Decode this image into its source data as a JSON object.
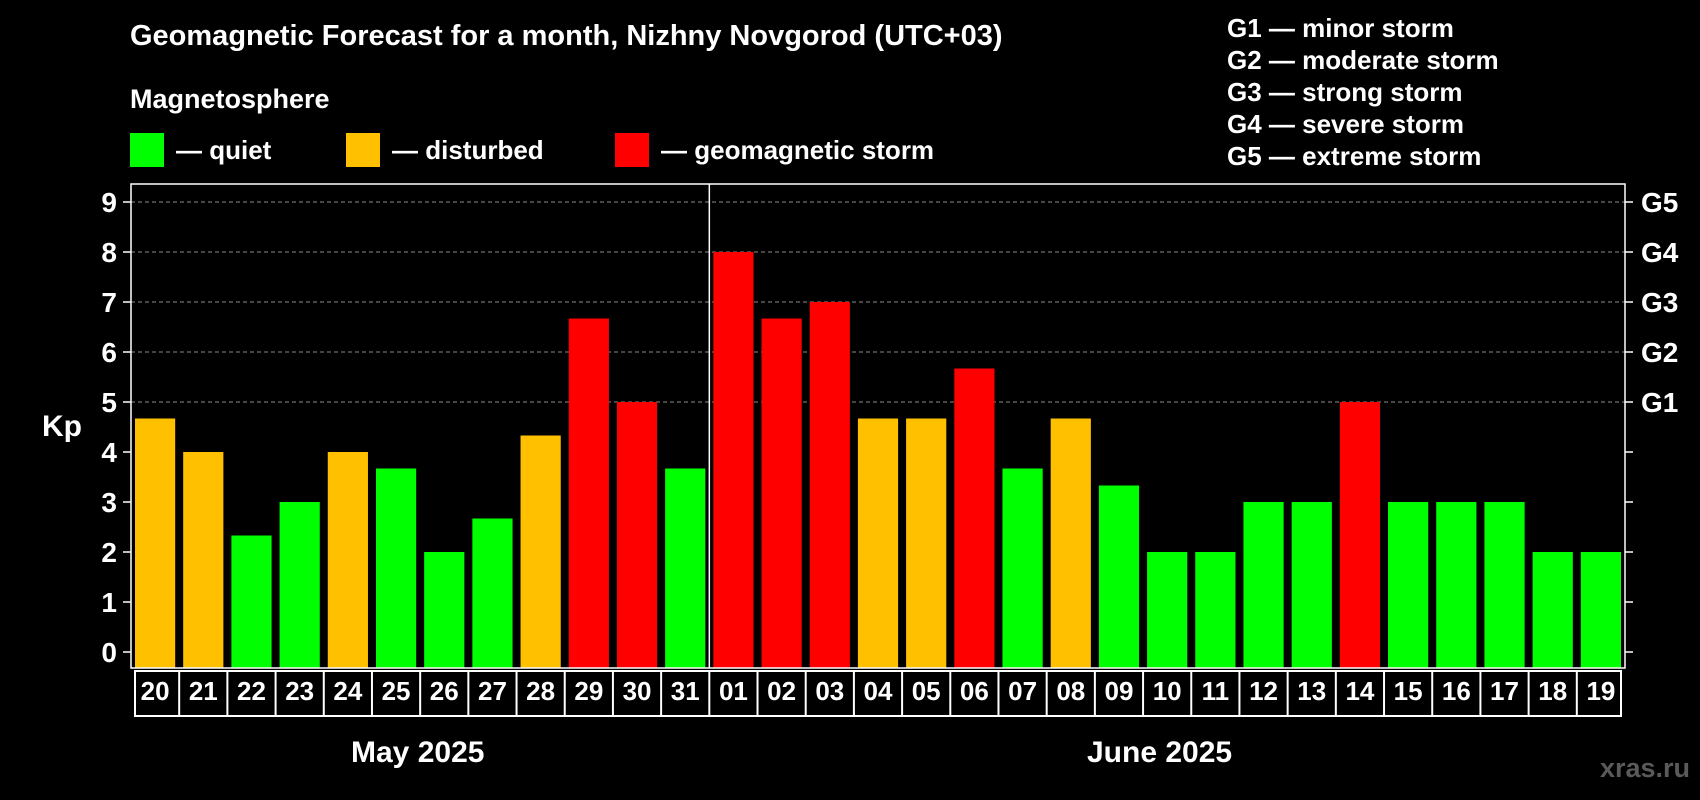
{
  "title": "Geomagnetic Forecast for a month, Nizhny Novgorod (UTC+03)",
  "magnetosphere_label": "Magnetosphere",
  "legend": [
    {
      "label": "— quiet",
      "color": "#00ff00"
    },
    {
      "label": "— disturbed",
      "color": "#ffc000"
    },
    {
      "label": "— geomagnetic storm",
      "color": "#ff0000"
    }
  ],
  "g_scale": [
    "G1 — minor storm",
    "G2 — moderate storm",
    "G3 — strong storm",
    "G4 — severe storm",
    "G5 — extreme storm"
  ],
  "months": [
    "May 2025",
    "June 2025"
  ],
  "watermark": "xras.ru",
  "colors": {
    "quiet": "#00ff00",
    "disturbed": "#ffc000",
    "storm": "#ff0000",
    "grid": "#8a8a8a"
  },
  "chart_data": {
    "type": "bar",
    "ylabel": "Kp",
    "ylim": [
      0,
      9
    ],
    "yticks": [
      "0",
      "1",
      "2",
      "3",
      "4",
      "5",
      "6",
      "7",
      "8",
      "9"
    ],
    "right_ticks": [
      {
        "value": 5,
        "label": "G1"
      },
      {
        "value": 6,
        "label": "G2"
      },
      {
        "value": 7,
        "label": "G3"
      },
      {
        "value": 8,
        "label": "G4"
      },
      {
        "value": 9,
        "label": "G5"
      }
    ],
    "categories": [
      "20",
      "21",
      "22",
      "23",
      "24",
      "25",
      "26",
      "27",
      "28",
      "29",
      "30",
      "31",
      "01",
      "02",
      "03",
      "04",
      "05",
      "06",
      "07",
      "08",
      "09",
      "10",
      "11",
      "12",
      "13",
      "14",
      "15",
      "16",
      "17",
      "18",
      "19"
    ],
    "values": [
      4.67,
      4.0,
      2.33,
      3.0,
      4.0,
      3.67,
      2.0,
      2.67,
      4.33,
      6.67,
      5.0,
      3.67,
      8.0,
      6.67,
      7.0,
      4.67,
      4.67,
      5.67,
      3.67,
      4.67,
      3.33,
      2.0,
      2.0,
      3.0,
      3.0,
      5.0,
      3.0,
      3.0,
      3.0,
      2.0,
      2.0
    ],
    "levels": [
      "disturbed",
      "disturbed",
      "quiet",
      "quiet",
      "disturbed",
      "quiet",
      "quiet",
      "quiet",
      "disturbed",
      "storm",
      "storm",
      "quiet",
      "storm",
      "storm",
      "storm",
      "disturbed",
      "disturbed",
      "storm",
      "quiet",
      "disturbed",
      "quiet",
      "quiet",
      "quiet",
      "quiet",
      "quiet",
      "storm",
      "quiet",
      "quiet",
      "quiet",
      "quiet",
      "quiet"
    ],
    "month_divider_after_index": 11,
    "grid": true
  }
}
